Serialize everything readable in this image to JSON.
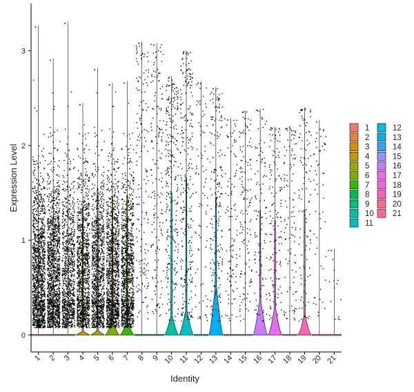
{
  "chart_data": {
    "type": "violin",
    "xlabel": "Identity",
    "ylabel": "Expression Level",
    "ylim": [
      -0.18,
      3.5
    ],
    "yticks": [
      0,
      1,
      2,
      3
    ],
    "categories": [
      "1",
      "2",
      "3",
      "4",
      "5",
      "6",
      "7",
      "8",
      "9",
      "10",
      "11",
      "12",
      "13",
      "14",
      "15",
      "16",
      "17",
      "18",
      "19",
      "20",
      "21"
    ],
    "colors": [
      "#F8766D",
      "#EA8331",
      "#D89000",
      "#C09B00",
      "#A3A500",
      "#7CAE00",
      "#39B600",
      "#00BB4E",
      "#00BF7D",
      "#00C1A3",
      "#00BFC4",
      "#00BAE0",
      "#00B0F6",
      "#35A2FF",
      "#9590FF",
      "#C77CFF",
      "#E76BF3",
      "#FA62DB",
      "#FF62BC",
      "#FF6C91",
      "#FF6C91"
    ],
    "max_values": [
      3.27,
      2.92,
      3.31,
      2.45,
      2.82,
      2.66,
      2.68,
      3.1,
      3.08,
      2.73,
      3.0,
      2.68,
      2.62,
      2.29,
      2.37,
      2.39,
      2.2,
      2.2,
      2.4,
      2.27,
      0.91
    ],
    "dot_density": [
      1.0,
      1.0,
      0.7,
      0.85,
      0.75,
      0.9,
      0.8,
      0.12,
      0.12,
      0.2,
      0.2,
      0.06,
      0.15,
      0.08,
      0.1,
      0.08,
      0.1,
      0.08,
      0.08,
      0.04,
      0.01
    ],
    "bulge_height": [
      0,
      0,
      0,
      0.04,
      0.05,
      0.15,
      0.14,
      0,
      0,
      0.2,
      0.25,
      0,
      0.5,
      0,
      0,
      0.35,
      0.28,
      0,
      0.2,
      0,
      0
    ],
    "bulge_width": [
      0,
      0,
      0,
      0.55,
      0.55,
      0.65,
      0.65,
      0,
      0,
      0.7,
      0.75,
      0,
      0.75,
      0,
      0,
      0.75,
      0.65,
      0,
      0.6,
      0,
      0
    ],
    "legend": {
      "title": "",
      "entries": [
        "1",
        "2",
        "3",
        "4",
        "5",
        "6",
        "7",
        "8",
        "9",
        "10",
        "11",
        "12",
        "13",
        "14",
        "15",
        "16",
        "17",
        "18",
        "19",
        "20",
        "21"
      ],
      "position": "right"
    }
  }
}
